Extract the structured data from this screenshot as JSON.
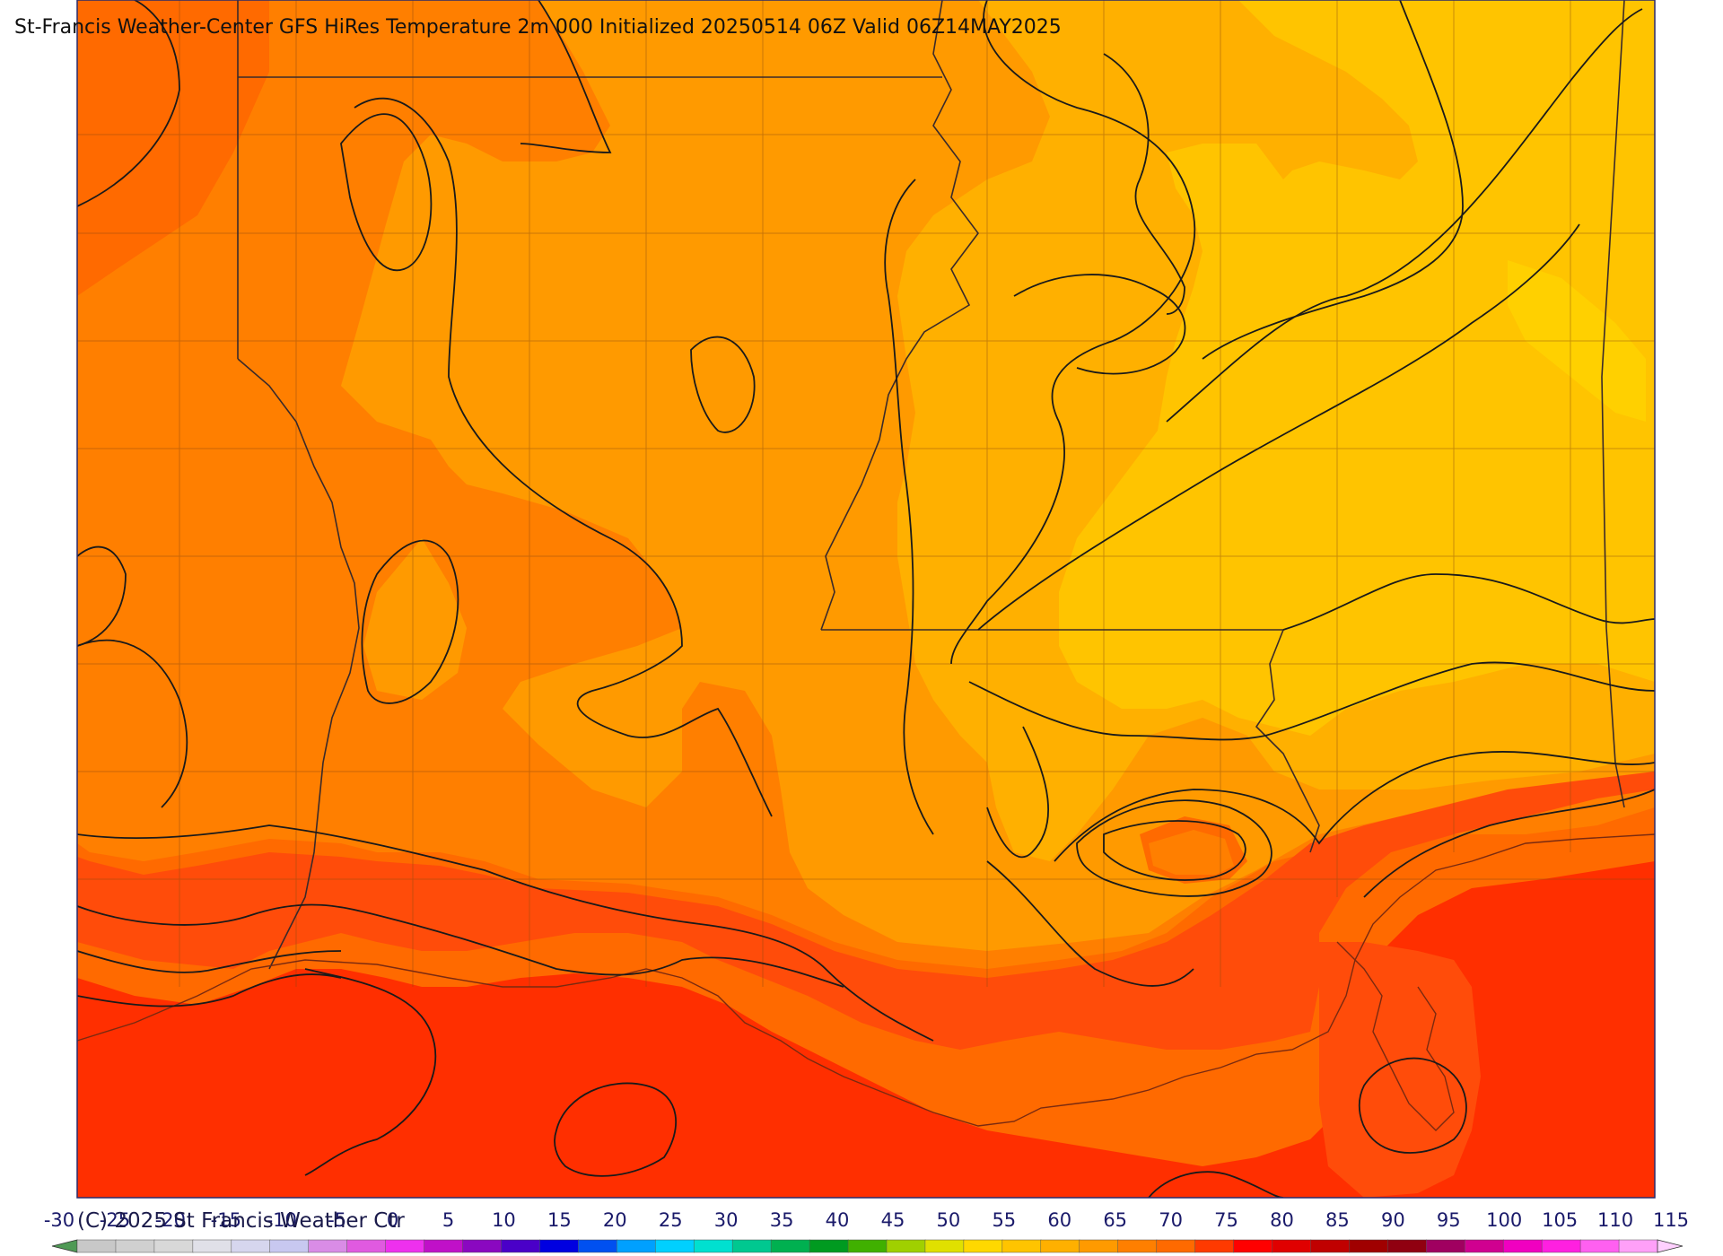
{
  "title": "St-Francis Weather-Center GFS HiRes Temperature 2m  000 Initialized 20250514 06Z Valid 06Z14MAY2025",
  "copyright": "(C) 2025 St Francis Weather Ctr",
  "colors": {
    "t60": "#ffc400",
    "t65": "#ffb000",
    "t70": "#ff9a00",
    "t75": "#ff7f00",
    "t80": "#ff6a00",
    "t85": "#ff4c0a",
    "t90": "#ff2f00",
    "contour": "#1a1a1a",
    "county": "#8a4a10",
    "frame": "#2a2a6a"
  },
  "colorbar": {
    "labels": [
      "-30",
      "-25",
      "-20",
      "-15",
      "-10",
      "-5",
      "0",
      "5",
      "10",
      "15",
      "20",
      "25",
      "30",
      "35",
      "40",
      "45",
      "50",
      "55",
      "60",
      "65",
      "70",
      "75",
      "80",
      "85",
      "90",
      "95",
      "100",
      "105",
      "110",
      "115"
    ],
    "bins": [
      "#bdbdbd",
      "#c8c8c8",
      "#d0d0d0",
      "#d8d8d8",
      "#e0e0e8",
      "#d6d6ee",
      "#c8c8f0",
      "#d98ce6",
      "#e05ae0",
      "#ee30ee",
      "#c010c8",
      "#8a08c0",
      "#4a00c8",
      "#0000e0",
      "#0050f0",
      "#00a0ff",
      "#00d0ff",
      "#00e0d0",
      "#00c890",
      "#00b050",
      "#009a20",
      "#40b000",
      "#a0d000",
      "#e0e000",
      "#ffd800",
      "#ffc400",
      "#ffb000",
      "#ff9a00",
      "#ff7f00",
      "#ff6a00",
      "#ff3a00",
      "#ff0000",
      "#e00000",
      "#c00000",
      "#a00000",
      "#900010",
      "#a00060",
      "#d00090",
      "#f000c0",
      "#ff20e0",
      "#ff60f0",
      "#ffa0f8",
      "#ffd0ff"
    ]
  }
}
